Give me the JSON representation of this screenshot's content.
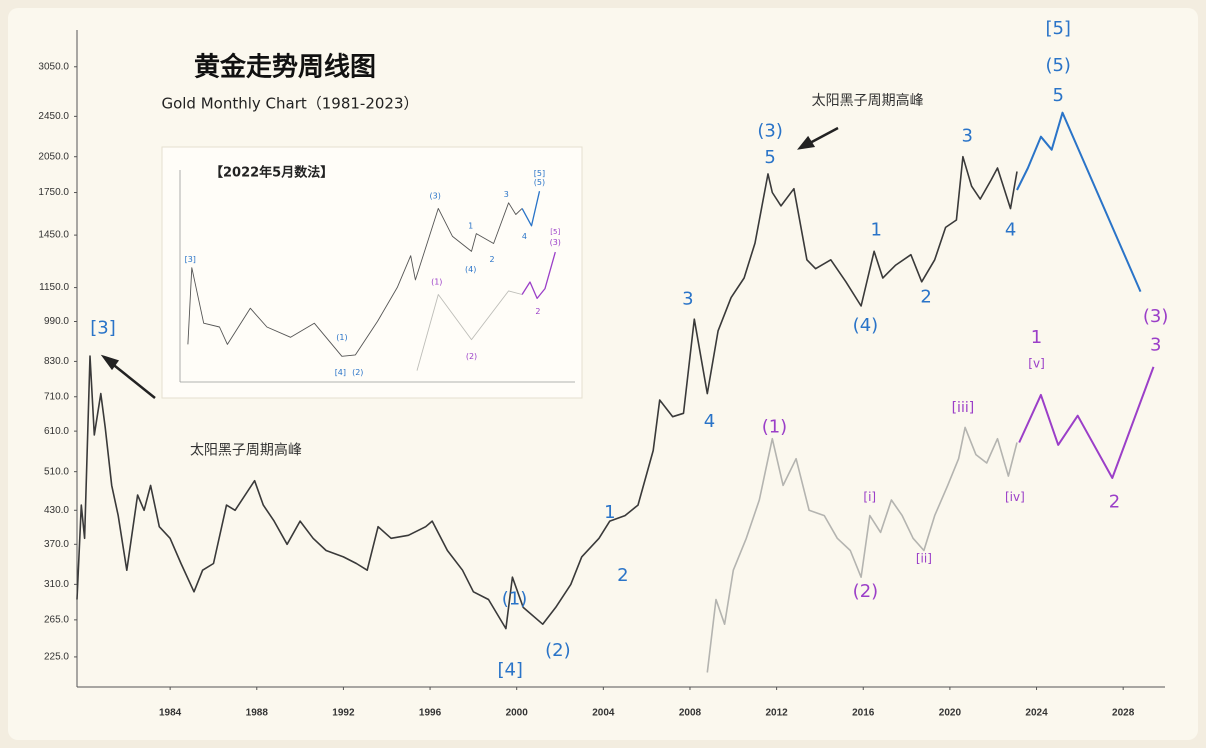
{
  "chart_data": [
    {
      "type": "line",
      "title": "黄金走势周线图",
      "subtitle": "Gold Monthly Chart（1981-2023）",
      "log_y": true,
      "xlim": [
        1979.7,
        2029.7
      ],
      "ylim": [
        197,
        3750
      ],
      "xticks": [
        1984,
        1988,
        1992,
        1996,
        2000,
        2004,
        2008,
        2012,
        2016,
        2020,
        2024,
        2028
      ],
      "yticks": [
        {
          "value": 225,
          "label": "225.0"
        },
        {
          "value": 265,
          "label": "265.0"
        },
        {
          "value": 310,
          "label": "310.0"
        },
        {
          "value": 370,
          "label": "370.0"
        },
        {
          "value": 430,
          "label": "430.0"
        },
        {
          "value": 510,
          "label": "510.0"
        },
        {
          "value": 610,
          "label": "610.0"
        },
        {
          "value": 710,
          "label": "710.0"
        },
        {
          "value": 830,
          "label": "830.0"
        },
        {
          "value": 990,
          "label": "990.0"
        },
        {
          "value": 1150,
          "label": "1150.0"
        },
        {
          "value": 1450,
          "label": "1450.0"
        },
        {
          "value": 1750,
          "label": "1750.0"
        },
        {
          "value": 2050,
          "label": "2050.0"
        },
        {
          "value": 2450,
          "label": "2450.0"
        },
        {
          "value": 3050,
          "label": "3050.0"
        }
      ],
      "series": [
        {
          "color": "#3a3a3a",
          "x": [
            1979.7,
            1979.9,
            1980.05,
            1980.3,
            1980.5,
            1980.8,
            1981.0,
            1981.3,
            1981.6,
            1982.0,
            1982.5,
            1982.8,
            1983.1,
            1983.5,
            1984.0,
            1984.5,
            1985.1,
            1985.5,
            1986.0,
            1986.6,
            1987.0,
            1987.9,
            1988.3,
            1988.8,
            1989.4,
            1990.0,
            1990.6,
            1991.2,
            1992.0,
            1992.6,
            1993.1,
            1993.6,
            1994.2,
            1995.0,
            1995.8,
            1996.1,
            1996.8,
            1997.5,
            1998.0,
            1998.7,
            1999.5,
            1999.8,
            2000.3,
            2001.2,
            2001.8,
            2002.5,
            2003.0,
            2003.8,
            2004.3,
            2005.0,
            2005.6,
            2006.3,
            2006.6,
            2007.2,
            2007.7,
            2008.2,
            2008.8,
            2009.3,
            2009.9,
            2010.5,
            2011.0,
            2011.6,
            2011.8,
            2012.2,
            2012.8,
            2013.4,
            2013.8,
            2014.5,
            2015.2,
            2015.9,
            2016.5,
            2016.9,
            2017.5,
            2018.2,
            2018.7,
            2019.3,
            2019.8,
            2020.3,
            2020.6,
            2021.0,
            2021.4,
            2021.9,
            2022.2,
            2022.8,
            2023.1
          ],
          "values": [
            290,
            440,
            380,
            850,
            600,
            720,
            620,
            480,
            420,
            330,
            460,
            430,
            480,
            400,
            380,
            340,
            300,
            330,
            340,
            440,
            430,
            490,
            440,
            410,
            370,
            410,
            380,
            360,
            350,
            340,
            330,
            400,
            380,
            385,
            400,
            410,
            360,
            330,
            300,
            290,
            255,
            320,
            280,
            260,
            280,
            310,
            350,
            380,
            410,
            420,
            440,
            560,
            700,
            650,
            660,
            1000,
            720,
            950,
            1100,
            1200,
            1400,
            1900,
            1750,
            1650,
            1780,
            1300,
            1250,
            1300,
            1180,
            1060,
            1350,
            1200,
            1270,
            1330,
            1180,
            1300,
            1500,
            1550,
            2050,
            1800,
            1700,
            1850,
            1950,
            1630,
            1920
          ]
        },
        {
          "color": "#b4b4b0",
          "x": [
            2008.8,
            2009.2,
            2009.6,
            2010.0,
            2010.6,
            2011.2,
            2011.8,
            2012.3,
            2012.9,
            2013.5,
            2014.2,
            2014.8,
            2015.4,
            2015.9,
            2016.3,
            2016.8,
            2017.3,
            2017.8,
            2018.3,
            2018.8,
            2019.3,
            2019.9,
            2020.4,
            2020.7,
            2021.2,
            2021.7,
            2022.2,
            2022.7,
            2023.1
          ],
          "values": [
            210,
            290,
            260,
            330,
            380,
            450,
            590,
            480,
            540,
            430,
            420,
            380,
            360,
            320,
            420,
            390,
            450,
            420,
            380,
            360,
            420,
            480,
            540,
            620,
            550,
            530,
            590,
            500,
            580
          ]
        },
        {
          "color": "#2a74c8",
          "x": [
            2023.1,
            2023.6,
            2024.2,
            2024.7,
            2025.2,
            2028.8
          ],
          "values": [
            1770,
            1950,
            2240,
            2115,
            2490,
            1130
          ]
        },
        {
          "color": "#9b3fc8",
          "x": [
            2023.2,
            2024.2,
            2025.0,
            2025.9,
            2027.5,
            2029.4
          ],
          "values": [
            580,
            716,
            574,
            653,
            496,
            810
          ]
        }
      ],
      "annotations": [
        {
          "text": "[3]",
          "x": 1980.9,
          "y": 960,
          "color": "#2a74c8"
        },
        {
          "text": "太阳黑子周期高峰",
          "x": 1987.5,
          "y": 560,
          "color": "#333333"
        },
        {
          "text": "[4]",
          "x": 1999.7,
          "y": 212,
          "color": "#2a74c8"
        },
        {
          "text": "(1)",
          "x": 1999.9,
          "y": 290,
          "color": "#2a74c8"
        },
        {
          "text": "(2)",
          "x": 2001.9,
          "y": 231,
          "color": "#2a74c8"
        },
        {
          "text": "1",
          "x": 2004.3,
          "y": 425,
          "color": "#2a74c8"
        },
        {
          "text": "2",
          "x": 2004.9,
          "y": 322,
          "color": "#2a74c8"
        },
        {
          "text": "3",
          "x": 2007.9,
          "y": 1090,
          "color": "#2a74c8"
        },
        {
          "text": "4",
          "x": 2008.9,
          "y": 635,
          "color": "#2a74c8"
        },
        {
          "text": "5",
          "x": 2011.7,
          "y": 2040,
          "color": "#2a74c8"
        },
        {
          "text": "(3)",
          "x": 2011.7,
          "y": 2290,
          "color": "#2a74c8"
        },
        {
          "text": "太阳黑子周期高峰",
          "x": 2016.2,
          "y": 2620,
          "color": "#333333"
        },
        {
          "text": "1",
          "x": 2016.6,
          "y": 1480,
          "color": "#2a74c8"
        },
        {
          "text": "(4)",
          "x": 2016.1,
          "y": 970,
          "color": "#2a74c8"
        },
        {
          "text": "2",
          "x": 2018.9,
          "y": 1100,
          "color": "#2a74c8"
        },
        {
          "text": "3",
          "x": 2020.8,
          "y": 2240,
          "color": "#2a74c8"
        },
        {
          "text": "4",
          "x": 2022.8,
          "y": 1480,
          "color": "#2a74c8"
        },
        {
          "text": "5",
          "x": 2025.0,
          "y": 2680,
          "color": "#2a74c8"
        },
        {
          "text": "(5)",
          "x": 2025.0,
          "y": 3060,
          "color": "#2a74c8"
        },
        {
          "text": "[5]",
          "x": 2025.0,
          "y": 3600,
          "color": "#2a74c8"
        },
        {
          "text": "(1)",
          "x": 2011.9,
          "y": 620,
          "color": "#9b3fc8"
        },
        {
          "text": "(2)",
          "x": 2016.1,
          "y": 300,
          "color": "#9b3fc8"
        },
        {
          "text": "[i]",
          "x": 2016.3,
          "y": 455,
          "color": "#9b3fc8"
        },
        {
          "text": "[ii]",
          "x": 2018.8,
          "y": 347,
          "color": "#9b3fc8"
        },
        {
          "text": "[iii]",
          "x": 2020.6,
          "y": 675,
          "color": "#9b3fc8"
        },
        {
          "text": "[iv]",
          "x": 2023.0,
          "y": 455,
          "color": "#9b3fc8"
        },
        {
          "text": "[v]",
          "x": 2024.0,
          "y": 820,
          "color": "#9b3fc8"
        },
        {
          "text": "1",
          "x": 2024.0,
          "y": 920,
          "color": "#9b3fc8"
        },
        {
          "text": "2",
          "x": 2027.6,
          "y": 445,
          "color": "#9b3fc8"
        },
        {
          "text": "(3)",
          "x": 2029.5,
          "y": 1010,
          "color": "#9b3fc8"
        },
        {
          "text": "3",
          "x": 2029.5,
          "y": 890,
          "color": "#9b3fc8"
        }
      ]
    },
    {
      "type": "line",
      "title": "【2022年5月数法】",
      "log_y": true,
      "xlim": [
        1979,
        2029
      ],
      "ylim": [
        180,
        3200
      ],
      "series": [
        {
          "color": "#555555",
          "x": [
            1980,
            1980.5,
            1982,
            1984,
            1985,
            1987.9,
            1990,
            1993,
            1996,
            1999.5,
            2001.2,
            2004,
            2006.5,
            2008.2,
            2008.8,
            2011.7,
            2013.5,
            2015.9,
            2016.5,
            2018.7,
            2020.6,
            2021.5,
            2022.3
          ],
          "values": [
            300,
            850,
            400,
            380,
            300,
            490,
            380,
            330,
            400,
            255,
            260,
            410,
            650,
            1000,
            720,
            1900,
            1300,
            1060,
            1350,
            1180,
            2050,
            1750,
            1900
          ]
        },
        {
          "color": "#bdbdb8",
          "x": [
            2009,
            2011.7,
            2015.9,
            2020.6,
            2022.3
          ],
          "values": [
            210,
            590,
            320,
            620,
            590
          ]
        },
        {
          "color": "#2a74c8",
          "x": [
            2022.3,
            2023.5,
            2024.5
          ],
          "values": [
            1900,
            1500,
            2400
          ]
        },
        {
          "color": "#9b3fc8",
          "x": [
            2022.3,
            2023.3,
            2024.2,
            2025.2,
            2026.5
          ],
          "values": [
            590,
            700,
            560,
            640,
            1050
          ]
        }
      ],
      "annotations": [
        {
          "text": "[3]",
          "x": 1980.3,
          "y": 950,
          "color": "#2a74c8"
        },
        {
          "text": "[4]",
          "x": 1999.3,
          "y": 205,
          "color": "#2a74c8"
        },
        {
          "text": "(1)",
          "x": 1999.5,
          "y": 330,
          "color": "#2a74c8"
        },
        {
          "text": "(2)",
          "x": 2001.5,
          "y": 205,
          "color": "#2a74c8"
        },
        {
          "text": "(3)",
          "x": 2011.3,
          "y": 2250,
          "color": "#2a74c8"
        },
        {
          "text": "1",
          "x": 2015.8,
          "y": 1500,
          "color": "#2a74c8"
        },
        {
          "text": "(4)",
          "x": 2015.8,
          "y": 830,
          "color": "#2a74c8"
        },
        {
          "text": "2",
          "x": 2018.5,
          "y": 950,
          "color": "#2a74c8"
        },
        {
          "text": "3",
          "x": 2020.3,
          "y": 2300,
          "color": "#2a74c8"
        },
        {
          "text": "4",
          "x": 2022.6,
          "y": 1300,
          "color": "#2a74c8"
        },
        {
          "text": "[5]",
          "x": 2024.5,
          "y": 3050,
          "color": "#2a74c8"
        },
        {
          "text": "(5)",
          "x": 2024.5,
          "y": 2700,
          "color": "#2a74c8"
        },
        {
          "text": "(1)",
          "x": 2011.5,
          "y": 700,
          "color": "#9b3fc8"
        },
        {
          "text": "(2)",
          "x": 2015.9,
          "y": 255,
          "color": "#9b3fc8"
        },
        {
          "text": "2",
          "x": 2024.3,
          "y": 470,
          "color": "#9b3fc8"
        },
        {
          "text": "[5]",
          "x": 2026.5,
          "y": 1380,
          "color": "#9b3fc8"
        },
        {
          "text": "(3)",
          "x": 2026.5,
          "y": 1200,
          "color": "#9b3fc8"
        }
      ]
    }
  ]
}
